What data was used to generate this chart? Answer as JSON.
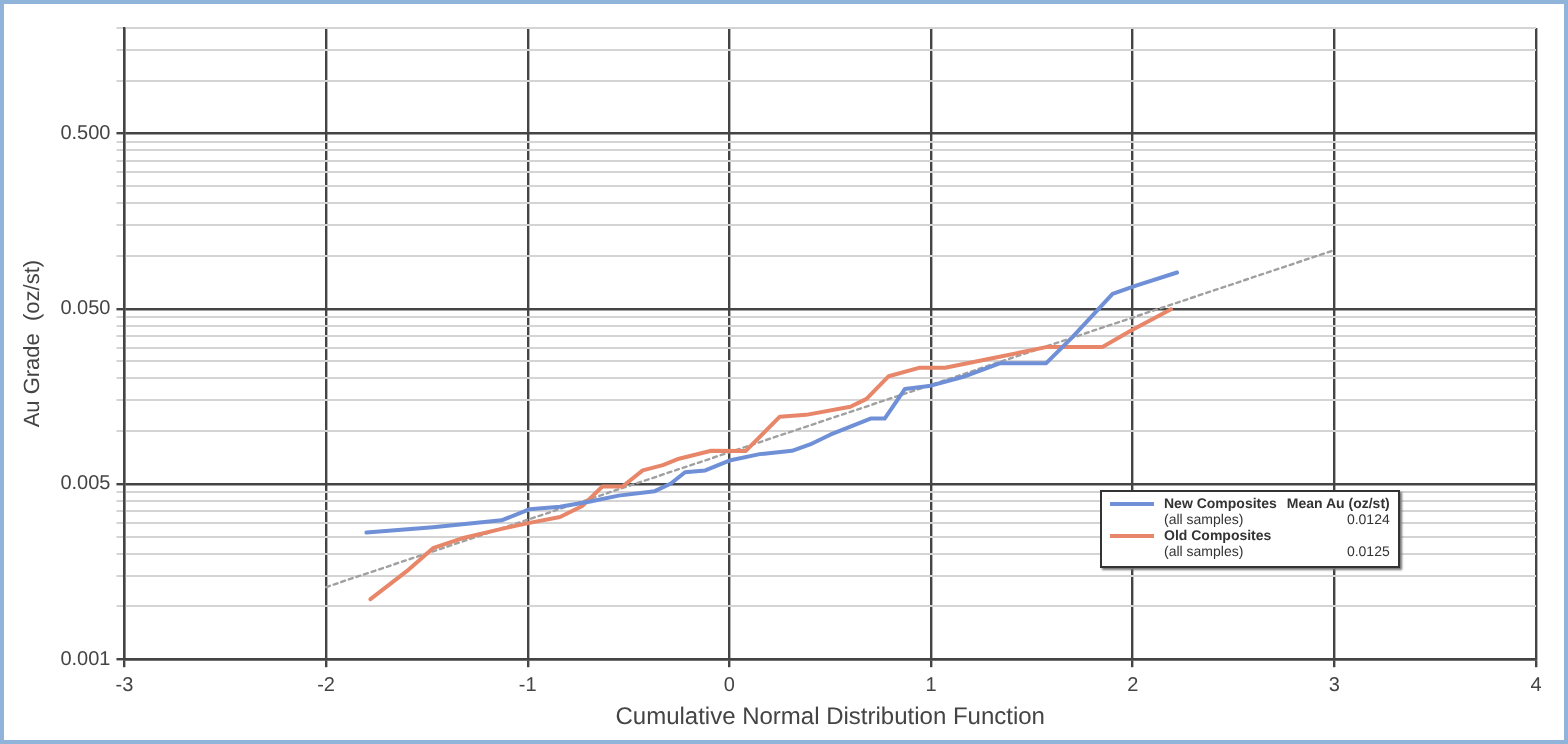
{
  "chart_data": {
    "type": "line",
    "xlabel": "Cumulative Normal Distribution Function",
    "ylabel": "Au Grade  (oz/st)",
    "xlim": [
      -3,
      4
    ],
    "xticks": [
      -3,
      -2,
      -1,
      0,
      1,
      2,
      3,
      4
    ],
    "ylim": [
      0.0005,
      2
    ],
    "log": "y",
    "yticks": [
      {
        "value": 0.0005,
        "label": "0.001"
      },
      {
        "value": 0.001,
        "label": null
      },
      {
        "value": 0.0015,
        "label": null
      },
      {
        "value": 0.002,
        "label": null
      },
      {
        "value": 0.0025,
        "label": null
      },
      {
        "value": 0.003,
        "label": null
      },
      {
        "value": 0.0035,
        "label": null
      },
      {
        "value": 0.004,
        "label": null
      },
      {
        "value": 0.0045,
        "label": null
      },
      {
        "value": 0.005,
        "label": "0.005"
      },
      {
        "value": 0.01,
        "label": null
      },
      {
        "value": 0.015,
        "label": null
      },
      {
        "value": 0.02,
        "label": null
      },
      {
        "value": 0.025,
        "label": null
      },
      {
        "value": 0.03,
        "label": null
      },
      {
        "value": 0.035,
        "label": null
      },
      {
        "value": 0.04,
        "label": null
      },
      {
        "value": 0.045,
        "label": null
      },
      {
        "value": 0.05,
        "label": "0.050"
      },
      {
        "value": 0.1,
        "label": null
      },
      {
        "value": 0.15,
        "label": null
      },
      {
        "value": 0.2,
        "label": null
      },
      {
        "value": 0.25,
        "label": null
      },
      {
        "value": 0.3,
        "label": null
      },
      {
        "value": 0.35,
        "label": null
      },
      {
        "value": 0.4,
        "label": null
      },
      {
        "value": 0.45,
        "label": null
      },
      {
        "value": 0.5,
        "label": "0.500"
      },
      {
        "value": 1,
        "label": null
      },
      {
        "value": 1.5,
        "label": null
      },
      {
        "value": 2,
        "label": null
      }
    ],
    "grid": true,
    "legend": "bottom right",
    "marker": "none",
    "line_style": "solid",
    "series": [
      {
        "name": "New Composites",
        "color": "#6f8fd6",
        "x": [
          -1.8,
          -1.47,
          -1.13,
          -0.99,
          -0.84,
          -0.69,
          -0.55,
          -0.37,
          -0.29,
          -0.22,
          -0.12,
          0,
          0.15,
          0.31,
          0.4,
          0.5,
          0.7,
          0.77,
          0.87,
          0.99,
          1.17,
          1.34,
          1.57,
          1.7,
          1.9,
          2.02,
          2.22
        ],
        "values": [
          0.00264,
          0.00283,
          0.0031,
          0.00359,
          0.00371,
          0.00397,
          0.00429,
          0.00455,
          0.00503,
          0.00583,
          0.00597,
          0.0068,
          0.0074,
          0.00773,
          0.0084,
          0.00955,
          0.0118,
          0.0118,
          0.0174,
          0.0181,
          0.0206,
          0.0244,
          0.0244,
          0.0343,
          0.0608,
          0.068,
          0.0805
        ]
      },
      {
        "name": "Old Composites",
        "color": "#e8866a",
        "x": [
          -1.78,
          -1.6,
          -1.47,
          -1.33,
          -1.13,
          -1.01,
          -0.84,
          -0.73,
          -0.63,
          -0.53,
          -0.43,
          -0.33,
          -0.25,
          -0.09,
          0.08,
          0.25,
          0.38,
          0.6,
          0.68,
          0.79,
          0.94,
          1.07,
          1.34,
          1.57,
          1.85,
          1.99,
          2.19
        ],
        "values": [
          0.0011,
          0.00159,
          0.00215,
          0.00244,
          0.00277,
          0.00297,
          0.00324,
          0.00374,
          0.00484,
          0.00484,
          0.00598,
          0.0064,
          0.00697,
          0.00773,
          0.0077,
          0.0121,
          0.0124,
          0.0138,
          0.0153,
          0.0206,
          0.023,
          0.023,
          0.0266,
          0.0302,
          0.0302,
          0.0374,
          0.0496
        ]
      },
      {
        "type": "line",
        "color": "#a0a0a0",
        "line_style": "dotted",
        "x": [
          -2,
          3
        ],
        "values": [
          0.00129,
          0.108
        ]
      }
    ],
    "annotations": [
      "Mean Au (oz/st)",
      "(all samples)",
      "0.0124",
      "(all samples)",
      "0.0125"
    ]
  }
}
